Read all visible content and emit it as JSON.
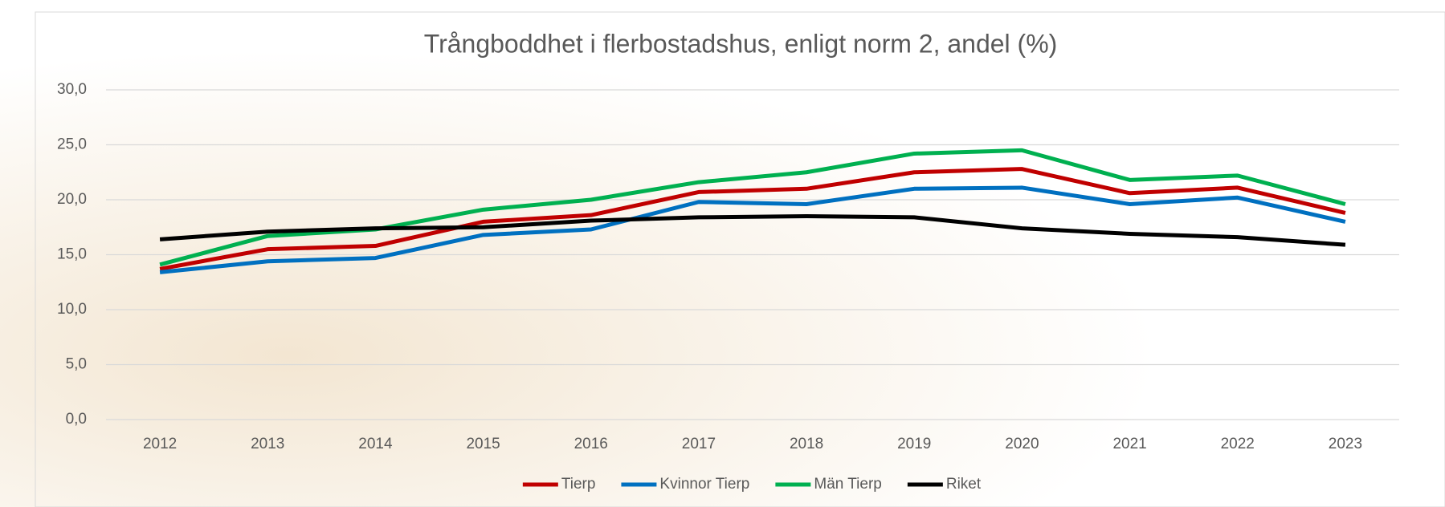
{
  "chart_data": {
    "type": "line",
    "title": "Trångboddhet i flerbostadshus, enligt norm 2, andel (%)",
    "categories": [
      "2012",
      "2013",
      "2014",
      "2015",
      "2016",
      "2017",
      "2018",
      "2019",
      "2020",
      "2021",
      "2022",
      "2023"
    ],
    "series": [
      {
        "name": "Tierp",
        "color": "#c00000",
        "values": [
          13.7,
          15.5,
          15.8,
          18.0,
          18.6,
          20.7,
          21.0,
          22.5,
          22.8,
          20.6,
          21.1,
          18.8
        ]
      },
      {
        "name": "Kvinnor Tierp",
        "color": "#0070c0",
        "values": [
          13.4,
          14.4,
          14.7,
          16.8,
          17.3,
          19.8,
          19.6,
          21.0,
          21.1,
          19.6,
          20.2,
          18.0
        ]
      },
      {
        "name": "Män Tierp",
        "color": "#00b050",
        "values": [
          14.1,
          16.7,
          17.3,
          19.1,
          20.0,
          21.6,
          22.5,
          24.2,
          24.5,
          21.8,
          22.2,
          19.6
        ]
      },
      {
        "name": "Riket",
        "color": "#000000",
        "values": [
          16.4,
          17.1,
          17.4,
          17.5,
          18.1,
          18.4,
          18.5,
          18.4,
          17.4,
          16.9,
          16.6,
          15.9
        ]
      }
    ],
    "ylim": [
      0,
      30
    ],
    "yticks": [
      {
        "value": 0,
        "label": "0,0"
      },
      {
        "value": 5,
        "label": "5,0"
      },
      {
        "value": 10,
        "label": "10,0"
      },
      {
        "value": 15,
        "label": "15,0"
      },
      {
        "value": 20,
        "label": "20,0"
      },
      {
        "value": 25,
        "label": "25,0"
      },
      {
        "value": 30,
        "label": "30,0"
      }
    ],
    "grid": true,
    "legend": "bottom"
  }
}
